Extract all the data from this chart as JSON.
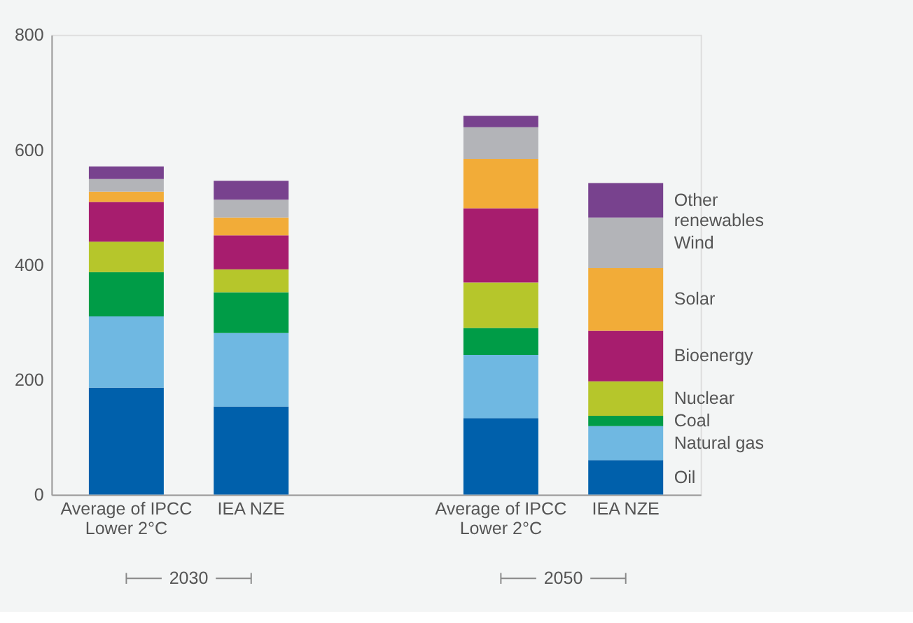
{
  "chart_data": {
    "type": "bar",
    "stacked": true,
    "categories": [
      "Average of IPCC Lower 2°C",
      "IEA NZE",
      null,
      "Average of IPCC Lower 2°C",
      "IEA NZE"
    ],
    "series": [
      {
        "name": "Oil",
        "color": "#0060ab",
        "values": [
          186,
          153,
          null,
          133,
          60
        ]
      },
      {
        "name": "Natural gas",
        "color": "#6fb8e2",
        "values": [
          124,
          128,
          null,
          110,
          59
        ]
      },
      {
        "name": "Coal",
        "color": "#009c47",
        "values": [
          77,
          71,
          null,
          47,
          18
        ]
      },
      {
        "name": "Nuclear",
        "color": "#b6c62b",
        "values": [
          53,
          40,
          null,
          79,
          60
        ]
      },
      {
        "name": "Bioenergy",
        "color": "#a71d6e",
        "values": [
          69,
          59,
          null,
          129,
          88
        ]
      },
      {
        "name": "Solar",
        "color": "#f2ac38",
        "values": [
          18,
          31,
          null,
          86,
          109
        ]
      },
      {
        "name": "Wind",
        "color": "#b3b4b8",
        "values": [
          22,
          31,
          null,
          55,
          88
        ]
      },
      {
        "name": "Other renewables",
        "color": "#78428e",
        "values": [
          22,
          33,
          null,
          20,
          60
        ]
      }
    ],
    "ylim": [
      0,
      800
    ],
    "yticks": [
      0,
      200,
      400,
      600,
      800
    ],
    "grid": false,
    "legend": "right",
    "annotations": [
      "2030",
      "2050"
    ]
  }
}
